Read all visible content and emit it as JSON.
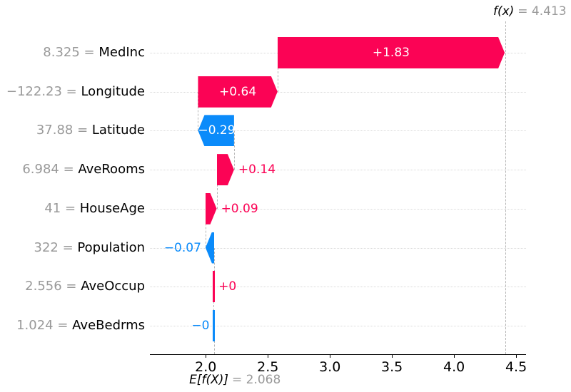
{
  "chart_data": {
    "type": "bar",
    "subtype": "shap-waterfall",
    "orientation": "horizontal",
    "title": "",
    "fx": {
      "label": "f(x)",
      "value": 4.413,
      "value_text": "= 4.413"
    },
    "base": {
      "label": "E[f(X)]",
      "value": 2.068,
      "value_text": "= 2.068"
    },
    "xlim": [
      1.55,
      4.58
    ],
    "grid": {
      "horizontal": "dotted",
      "vertical": "none"
    },
    "x_ticks": [
      {
        "value": 2.0,
        "label": "2.0"
      },
      {
        "value": 2.5,
        "label": "2.5"
      },
      {
        "value": 3.0,
        "label": "3.0"
      },
      {
        "value": 3.5,
        "label": "3.5"
      },
      {
        "value": 4.0,
        "label": "4.0"
      },
      {
        "value": 4.5,
        "label": "4.5"
      }
    ],
    "features": [
      {
        "name": "MedInc",
        "data_value": "8.325",
        "shap": 1.83,
        "bar_label": "+1.83",
        "sign": "positive"
      },
      {
        "name": "Longitude",
        "data_value": "−122.23",
        "shap": 0.64,
        "bar_label": "+0.64",
        "sign": "positive"
      },
      {
        "name": "Latitude",
        "data_value": "37.88",
        "shap": -0.29,
        "bar_label": "−0.29",
        "sign": "negative"
      },
      {
        "name": "AveRooms",
        "data_value": "6.984",
        "shap": 0.14,
        "bar_label": "+0.14",
        "sign": "positive"
      },
      {
        "name": "HouseAge",
        "data_value": "41",
        "shap": 0.09,
        "bar_label": "+0.09",
        "sign": "positive"
      },
      {
        "name": "Population",
        "data_value": "322",
        "shap": -0.07,
        "bar_label": "−0.07",
        "sign": "negative"
      },
      {
        "name": "AveOccup",
        "data_value": "2.556",
        "shap": 0.004,
        "bar_label": "+0",
        "sign": "positive"
      },
      {
        "name": "AveBedrms",
        "data_value": "1.024",
        "shap": -0.004,
        "bar_label": "−0",
        "sign": "negative"
      }
    ],
    "colors": {
      "positive": "#fb0355",
      "negative": "#0b8bfa",
      "value_gray": "#999999",
      "text_black": "#000000",
      "bar_label_inside": "#ffffff",
      "dashed_line": "#b5b5b5",
      "gridline": "#d9d9d9",
      "axis": "#000000",
      "background": "#ffffff"
    }
  }
}
